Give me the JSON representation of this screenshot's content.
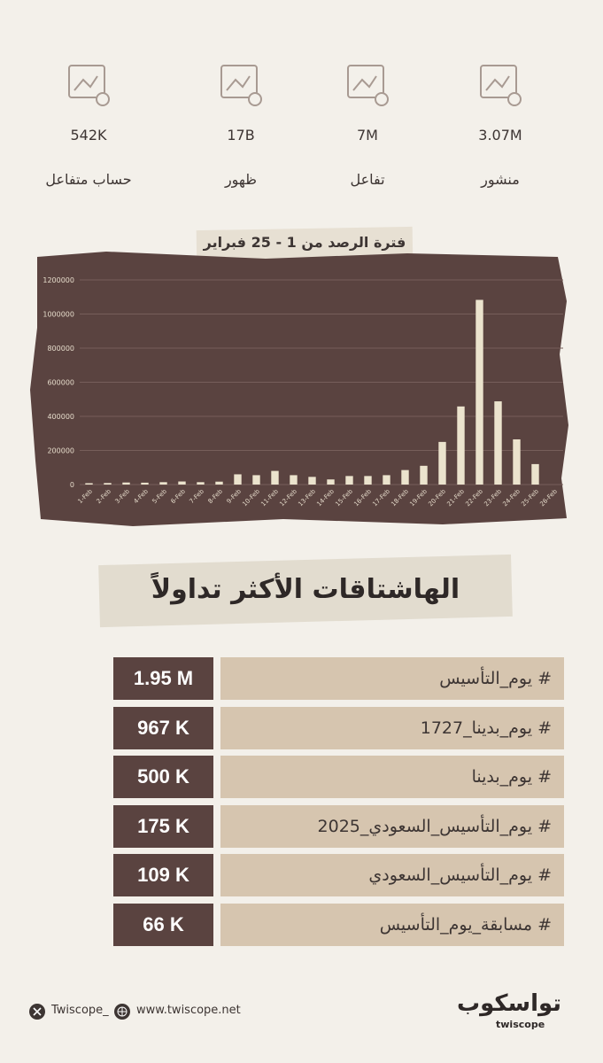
{
  "stats": [
    {
      "value": "3.07M",
      "label": "منشور"
    },
    {
      "value": "7M",
      "label": "تفاعل"
    },
    {
      "value": "17B",
      "label": "ظهور"
    },
    {
      "value": "542K",
      "label": "حساب متفاعل"
    }
  ],
  "period": "فترة الرصد من 1 - 25 فبراير",
  "chart_data": {
    "type": "bar",
    "categories": [
      "1-Feb",
      "2-Feb",
      "3-Feb",
      "4-Feb",
      "5-Feb",
      "6-Feb",
      "7-Feb",
      "8-Feb",
      "9-Feb",
      "10-Feb",
      "11-Feb",
      "12-Feb",
      "13-Feb",
      "14-Feb",
      "15-Feb",
      "16-Feb",
      "17-Feb",
      "18-Feb",
      "19-Feb",
      "20-Feb",
      "21-Feb",
      "22-Feb",
      "23-Feb",
      "24-Feb",
      "25-Feb",
      "26-Feb"
    ],
    "values": [
      8000,
      9000,
      12000,
      11000,
      14000,
      18000,
      14000,
      17000,
      60000,
      55000,
      80000,
      55000,
      45000,
      30000,
      50000,
      50000,
      55000,
      85000,
      110000,
      250000,
      458000,
      1083000,
      488000,
      265000,
      120000,
      null
    ],
    "color": "#ebe3cd",
    "ylim": [
      0,
      1200000
    ],
    "yticks": [
      0,
      200000,
      400000,
      600000,
      800000,
      1000000,
      1200000
    ],
    "grid": true
  },
  "hashtags": {
    "title": "الهاشتاقات الأكثر تداولاً",
    "rows": [
      [
        "# يوم_التأسيس",
        "1.95 M"
      ],
      [
        "# يوم_بدينا_1727",
        "967 K"
      ],
      [
        "# يوم_بدينا",
        "500 K"
      ],
      [
        "# يوم_التأسيس_السعودي_2025",
        "175 K"
      ],
      [
        "# يوم_التأسيس_السعودي",
        "109 K"
      ],
      [
        "# مسابقة_يوم_التأسيس",
        "66 K"
      ]
    ]
  },
  "footer": {
    "handle": "Twiscope_",
    "website": "www.twiscope.net",
    "logo_ar": "تواسكوب",
    "logo_en": "twiscope"
  }
}
